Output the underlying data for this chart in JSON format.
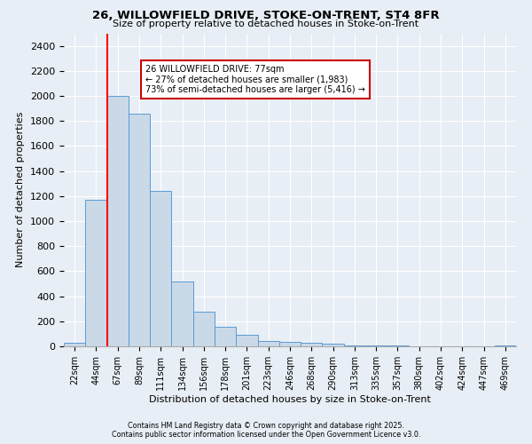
{
  "title_line1": "26, WILLOWFIELD DRIVE, STOKE-ON-TRENT, ST4 8FR",
  "title_line2": "Size of property relative to detached houses in Stoke-on-Trent",
  "xlabel": "Distribution of detached houses by size in Stoke-on-Trent",
  "ylabel": "Number of detached properties",
  "bar_labels": [
    "22sqm",
    "44sqm",
    "67sqm",
    "89sqm",
    "111sqm",
    "134sqm",
    "156sqm",
    "178sqm",
    "201sqm",
    "223sqm",
    "246sqm",
    "268sqm",
    "290sqm",
    "313sqm",
    "335sqm",
    "357sqm",
    "380sqm",
    "402sqm",
    "424sqm",
    "447sqm",
    "469sqm"
  ],
  "bar_values": [
    25,
    1170,
    2000,
    1860,
    1240,
    520,
    275,
    155,
    90,
    45,
    35,
    30,
    20,
    10,
    5,
    5,
    3,
    2,
    2,
    2,
    5
  ],
  "bar_color": "#c9d9e8",
  "bar_edge_color": "#5b9bd5",
  "annotation_title": "26 WILLOWFIELD DRIVE: 77sqm",
  "annotation_line2": "← 27% of detached houses are smaller (1,983)",
  "annotation_line3": "73% of semi-detached houses are larger (5,416) →",
  "annotation_box_color": "#ffffff",
  "annotation_box_edge": "#cc0000",
  "red_line_index": 2,
  "ylim": [
    0,
    2500
  ],
  "yticks": [
    0,
    200,
    400,
    600,
    800,
    1000,
    1200,
    1400,
    1600,
    1800,
    2000,
    2200,
    2400
  ],
  "footnote1": "Contains HM Land Registry data © Crown copyright and database right 2025.",
  "footnote2": "Contains public sector information licensed under the Open Government Licence v3.0.",
  "bg_color": "#e8eef5",
  "grid_color": "#ffffff"
}
